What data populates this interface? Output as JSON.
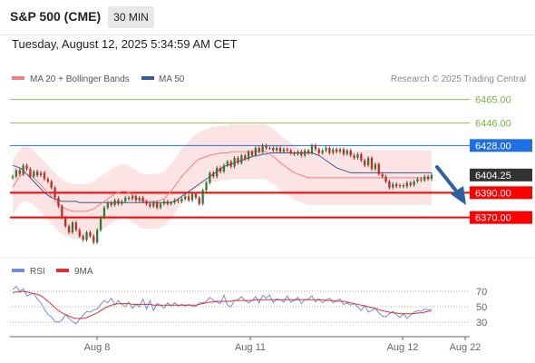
{
  "header": {
    "title": "S&P 500 (CME)",
    "timeframe": "30 MIN"
  },
  "datetime": "Tuesday, August 12, 2025 5:34:59 AM CET",
  "legend": {
    "bb_label": "MA 20 + Bollinger Bands",
    "ma50_label": "MA 50",
    "credit": "Research © 2025 Trading Central"
  },
  "rsi_legend": {
    "rsi_label": "RSI",
    "ma_label": "9MA"
  },
  "colors": {
    "up": "#2e7d32",
    "down": "#c62828",
    "resistance": "#8bc34a",
    "support": "#ff0000",
    "pivot": "#1e6fe6",
    "ma20": "#f08080",
    "ma50": "#3a5a98",
    "band": "#fde4e4",
    "arrow": "#2f5f9e",
    "rsi": "#6f8fdc",
    "rsi_ma": "#e03030"
  },
  "levels": [
    {
      "value": 6465.0,
      "label": "6465.00",
      "kind": "resistance"
    },
    {
      "value": 6446.0,
      "label": "6446.00",
      "kind": "resistance"
    },
    {
      "value": 6428.0,
      "label": "6428.00",
      "kind": "pivot"
    },
    {
      "value": 6390.0,
      "label": "6390.00",
      "kind": "support"
    },
    {
      "value": 6370.0,
      "label": "6370.00",
      "kind": "support"
    }
  ],
  "last_price": {
    "value": 6404.25,
    "label": "6404.25"
  },
  "rsi_ticks": [
    "70",
    "50",
    "30"
  ],
  "chart_data": [
    {
      "type": "candlestick",
      "title": "S&P 500 (CME)",
      "timeframe": "30 MIN",
      "x_tick_labels": [
        "Aug 8",
        "Aug 11",
        "Aug 12",
        "Aug 22"
      ],
      "ylim": [
        6342.0,
        6475.0
      ],
      "close": [
        6403,
        6408,
        6405,
        6412,
        6409,
        6403,
        6407,
        6404,
        6406,
        6401,
        6399,
        6394,
        6386,
        6379,
        6370,
        6363,
        6358,
        6366,
        6360,
        6355,
        6352,
        6358,
        6355,
        6350,
        6360,
        6370,
        6378,
        6382,
        6380,
        6384,
        6381,
        6383,
        6386,
        6385,
        6387,
        6384,
        6386,
        6383,
        6381,
        6379,
        6382,
        6378,
        6381,
        6383,
        6381,
        6382,
        6384,
        6383,
        6385,
        6387,
        6384,
        6389,
        6386,
        6381,
        6392,
        6398,
        6406,
        6403,
        6410,
        6407,
        6412,
        6415,
        6411,
        6418,
        6414,
        6420,
        6417,
        6423,
        6420,
        6426,
        6423,
        6428,
        6426,
        6426,
        6424,
        6426,
        6423,
        6425,
        6424,
        6422,
        6421,
        6423,
        6420,
        6424,
        6422,
        6428,
        6425,
        6422,
        6424,
        6426,
        6422,
        6425,
        6423,
        6425,
        6421,
        6424,
        6420,
        6418,
        6421,
        6416,
        6412,
        6418,
        6409,
        6413,
        6405,
        6403,
        6399,
        6394,
        6397,
        6395,
        6396,
        6395,
        6398,
        6396,
        6399,
        6401,
        6400,
        6403,
        6401,
        6404.25
      ],
      "series": [
        {
          "name": "MA 20 + Bollinger Bands",
          "values": [
            6394,
            6399,
            6403,
            6405,
            6405,
            6404,
            6402,
            6399,
            6396,
            6393,
            6390,
            6387,
            6384,
            6381,
            6379,
            6377,
            6376,
            6375,
            6375,
            6375,
            6375,
            6375,
            6376,
            6377,
            6379,
            6381,
            6383,
            6385,
            6387,
            6389,
            6390,
            6391,
            6391,
            6390,
            6388,
            6386,
            6384,
            6383,
            6383,
            6383,
            6383,
            6383,
            6384,
            6385,
            6388,
            6391,
            6395,
            6399,
            6403,
            6406,
            6409,
            6412,
            6415,
            6417,
            6418,
            6419,
            6420,
            6421,
            6421,
            6422,
            6422,
            6422,
            6423,
            6423,
            6423,
            6423,
            6423,
            6423,
            6423,
            6423,
            6423,
            6423,
            6423,
            6421,
            6419,
            6417,
            6414,
            6412,
            6410,
            6408,
            6406,
            6405,
            6404,
            6403,
            6402,
            6402,
            6402,
            6402,
            6402,
            6402,
            6402,
            6402,
            6402,
            6402,
            6402,
            6402,
            6402,
            6402,
            6402,
            6402,
            6402,
            6402,
            6402,
            6402,
            6402,
            6402,
            6402,
            6402,
            6402,
            6402,
            6402,
            6402,
            6402,
            6402,
            6402,
            6402,
            6402,
            6402,
            6402,
            6402
          ]
        },
        {
          "name": "MA 50",
          "values": [
            6412,
            6411,
            6410,
            6408,
            6405,
            6402,
            6399,
            6396,
            6393,
            6390,
            6388,
            6386,
            6385,
            6384,
            6383,
            6383,
            6383,
            6383,
            6383,
            6382,
            6382,
            6382,
            6382,
            6382,
            6382,
            6382,
            6382,
            6382,
            6382,
            6382,
            6382,
            6382,
            6382,
            6382,
            6382,
            6382,
            6382,
            6382,
            6382,
            6382,
            6382,
            6382,
            6382,
            6382,
            6382,
            6382,
            6383,
            6385,
            6387,
            6389,
            6391,
            6393,
            6395,
            6397,
            6399,
            6401,
            6403,
            6405,
            6407,
            6409,
            6411,
            6412,
            6413,
            6414,
            6415,
            6416,
            6417,
            6418,
            6419,
            6420,
            6420,
            6421,
            6421,
            6422,
            6422,
            6422,
            6422,
            6422,
            6422,
            6422,
            6422,
            6422,
            6422,
            6422,
            6422,
            6422,
            6421,
            6420,
            6418,
            6416,
            6414,
            6412,
            6410,
            6409,
            6408,
            6407,
            6406,
            6406,
            6406,
            6406,
            6406,
            6406,
            6406,
            6406,
            6406,
            6406,
            6406,
            6406,
            6406,
            6406,
            6406,
            6406,
            6406,
            6406,
            6406,
            6406,
            6406,
            6406,
            6406,
            6406
          ]
        }
      ],
      "legend": [
        "MA 20 + Bollinger Bands",
        "MA 50"
      ],
      "legend_position": "top-left"
    },
    {
      "type": "line",
      "ylim": [
        22,
        78
      ],
      "y_ticks": [
        70,
        50,
        30
      ],
      "series": [
        {
          "name": "RSI",
          "values": [
            72,
            76,
            70,
            73,
            64,
            66,
            67,
            60,
            55,
            47,
            40,
            37,
            31,
            30,
            33,
            40,
            35,
            31,
            28,
            34,
            39,
            44,
            43,
            46,
            47,
            53,
            58,
            55,
            61,
            52,
            58,
            53,
            50,
            56,
            48,
            53,
            50,
            60,
            47,
            58,
            45,
            54,
            52,
            48,
            55,
            51,
            55,
            51,
            53,
            51,
            53,
            51,
            50,
            55,
            55,
            57,
            62,
            58,
            56,
            54,
            65,
            52,
            50,
            58,
            59,
            63,
            58,
            55,
            58,
            63,
            55,
            65,
            61,
            65,
            55,
            60,
            59,
            56,
            64,
            56,
            58,
            62,
            54,
            59,
            60,
            64,
            56,
            60,
            55,
            59,
            61,
            55,
            58,
            60,
            53,
            55,
            52,
            54,
            50,
            45,
            52,
            43,
            45,
            48,
            42,
            38,
            37,
            41,
            44,
            40,
            36,
            41,
            35,
            39,
            43,
            45,
            44,
            47,
            46,
            47
          ]
        },
        {
          "name": "9MA",
          "values": [
            68,
            69,
            69,
            70,
            69,
            68,
            67,
            66,
            64,
            61,
            57,
            53,
            49,
            45,
            42,
            40,
            38,
            36,
            35,
            35,
            35,
            36,
            38,
            40,
            42,
            45,
            48,
            50,
            52,
            53,
            54,
            54,
            54,
            54,
            53,
            53,
            53,
            53,
            53,
            53,
            52,
            52,
            52,
            52,
            52,
            52,
            52,
            52,
            52,
            52,
            52,
            52,
            52,
            53,
            54,
            55,
            56,
            56,
            57,
            57,
            57,
            57,
            57,
            58,
            58,
            58,
            58,
            58,
            58,
            59,
            59,
            59,
            59,
            59,
            59,
            59,
            59,
            59,
            59,
            59,
            59,
            59,
            59,
            59,
            59,
            59,
            59,
            59,
            59,
            58,
            58,
            58,
            57,
            57,
            57,
            56,
            55,
            54,
            53,
            52,
            51,
            50,
            49,
            48,
            46,
            45,
            44,
            43,
            42,
            42,
            41,
            41,
            41,
            41,
            41,
            42,
            42,
            43,
            44,
            45
          ]
        }
      ],
      "legend": [
        "RSI",
        "9MA"
      ],
      "legend_position": "top-left"
    }
  ]
}
